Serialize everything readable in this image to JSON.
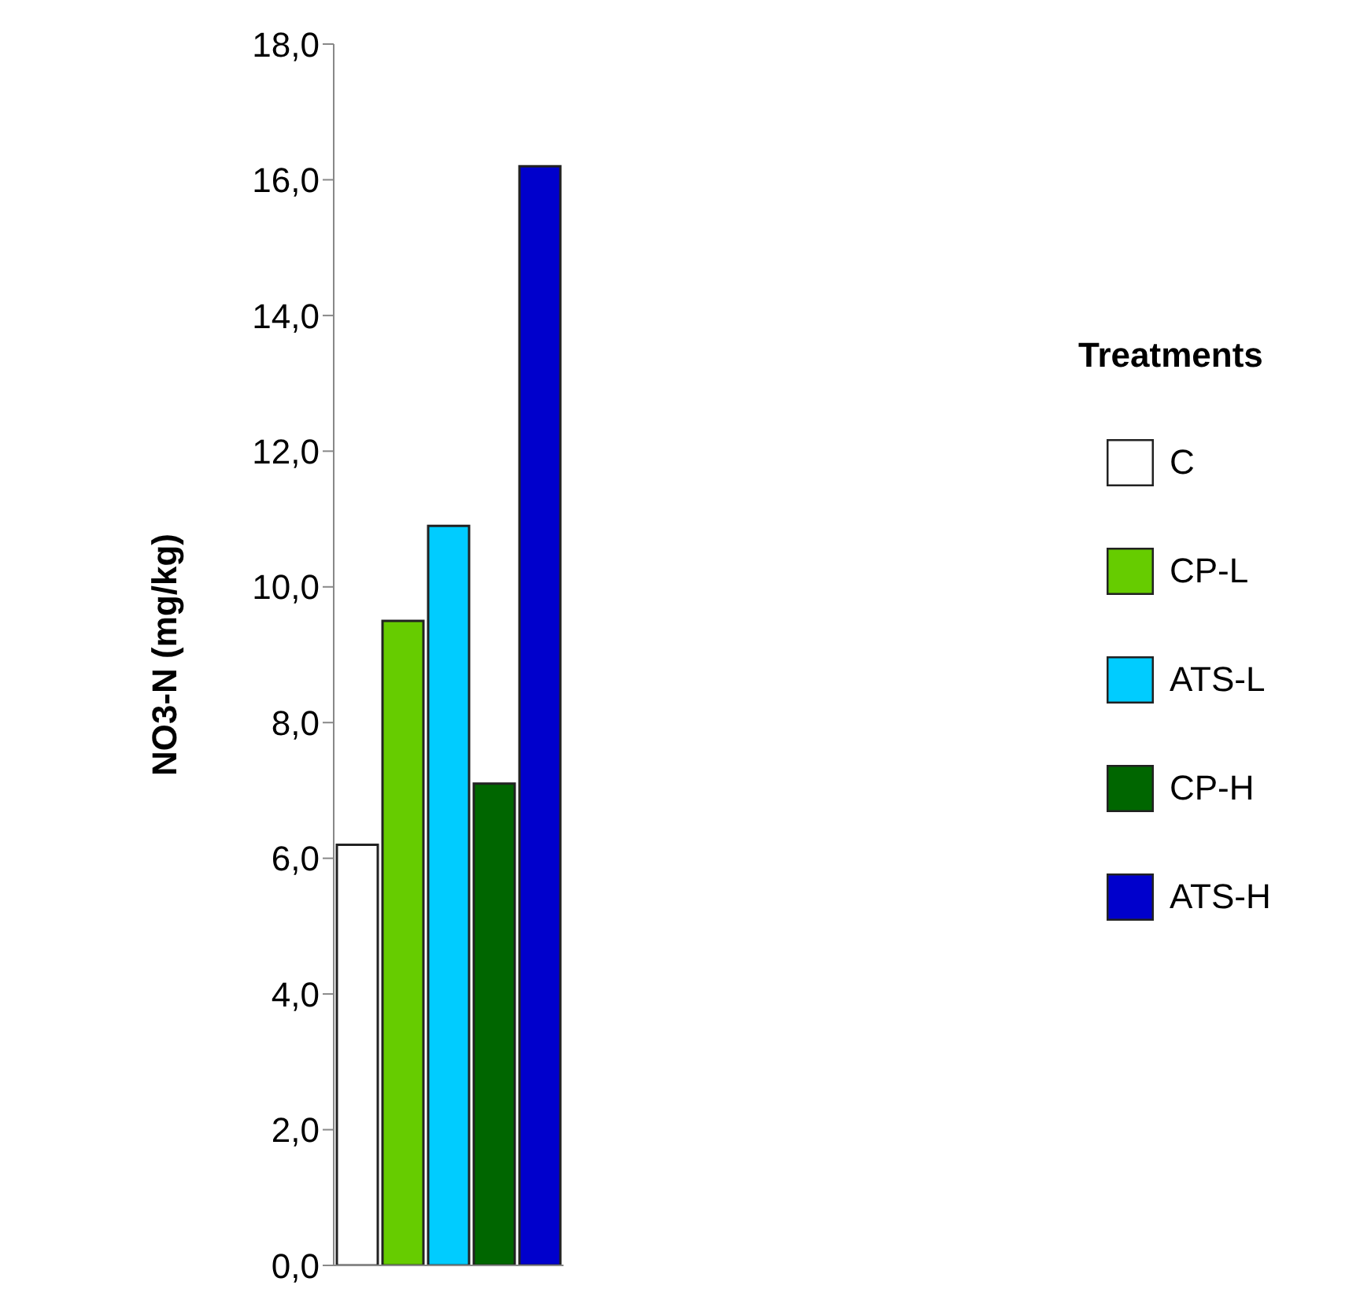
{
  "chart_data": {
    "type": "bar",
    "ylabel": "NO3-N (mg/kg)",
    "legend_title": "Treatments",
    "categories": [
      null
    ],
    "series": [
      {
        "name": "C",
        "color": "#ffffff",
        "values": [
          6.2
        ]
      },
      {
        "name": "CP-L",
        "color": "#66cc00",
        "values": [
          9.5
        ]
      },
      {
        "name": "ATS-L",
        "color": "#00ccff",
        "values": [
          10.9
        ]
      },
      {
        "name": "CP-H",
        "color": "#006600",
        "values": [
          7.1
        ]
      },
      {
        "name": "ATS-H",
        "color": "#0000cc",
        "values": [
          16.2
        ]
      }
    ],
    "ylim": [
      0,
      18
    ],
    "yticks": [
      {
        "value": 0,
        "label": "0,0"
      },
      {
        "value": 2,
        "label": "2,0"
      },
      {
        "value": 4,
        "label": "4,0"
      },
      {
        "value": 6,
        "label": "6,0"
      },
      {
        "value": 8,
        "label": "8,0"
      },
      {
        "value": 10,
        "label": "10,0"
      },
      {
        "value": 12,
        "label": "12,0"
      },
      {
        "value": 14,
        "label": "14,0"
      },
      {
        "value": 16,
        "label": "16,0"
      },
      {
        "value": 18,
        "label": "18,0"
      }
    ],
    "legend": "right"
  }
}
